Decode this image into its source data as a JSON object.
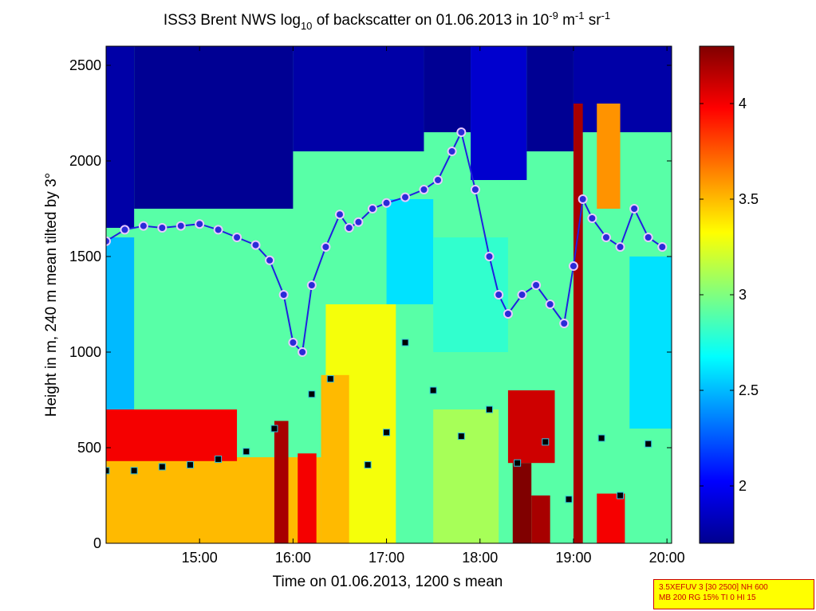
{
  "chart_data": {
    "type": "heatmap",
    "title_parts": {
      "a": "ISS3 Brent NWS log",
      "b": "10",
      "c": " of backscatter on 01.06.2013 in 10",
      "d": "-9",
      "e": " m",
      "f": "-1",
      "g": " sr",
      "h": "-1"
    },
    "xlabel": "Time on 01.06.2013, 1200 s mean",
    "ylabel": "Height in m, 240 m mean tilted by 3°",
    "xlim_hours": [
      14.0,
      20.05
    ],
    "ylim": [
      0,
      2600
    ],
    "x_ticks": [
      {
        "value": 15,
        "label": "15:00"
      },
      {
        "value": 16,
        "label": "16:00"
      },
      {
        "value": 17,
        "label": "17:00"
      },
      {
        "value": 18,
        "label": "18:00"
      },
      {
        "value": 19,
        "label": "19:00"
      },
      {
        "value": 20,
        "label": "20:00"
      }
    ],
    "y_ticks": [
      {
        "value": 0,
        "label": "0"
      },
      {
        "value": 500,
        "label": "500"
      },
      {
        "value": 1000,
        "label": "1000"
      },
      {
        "value": 1500,
        "label": "1500"
      },
      {
        "value": 2000,
        "label": "2000"
      },
      {
        "value": 2500,
        "label": "2500"
      }
    ],
    "colorbar": {
      "range": [
        1.7,
        4.3
      ],
      "ticks": [
        {
          "value": 2,
          "label": "2"
        },
        {
          "value": 2.5,
          "label": "2.5"
        },
        {
          "value": 3,
          "label": "3"
        },
        {
          "value": 3.5,
          "label": "3.5"
        },
        {
          "value": 4,
          "label": "4"
        }
      ]
    },
    "heatmap_zones": [
      {
        "x0": 14.0,
        "x1": 20.05,
        "y0": 0,
        "y1": 2600,
        "v": 2.9
      },
      {
        "x0": 14.0,
        "x1": 16.3,
        "y0": 0,
        "y1": 450,
        "v": 3.5
      },
      {
        "x0": 14.0,
        "x1": 15.4,
        "y0": 430,
        "y1": 700,
        "v": 4.0
      },
      {
        "x0": 14.0,
        "x1": 14.3,
        "y0": 1650,
        "y1": 2600,
        "v": 1.8
      },
      {
        "x0": 14.3,
        "x1": 16.0,
        "y0": 1750,
        "y1": 2600,
        "v": 1.75
      },
      {
        "x0": 16.0,
        "x1": 17.4,
        "y0": 2050,
        "y1": 2600,
        "v": 1.8
      },
      {
        "x0": 17.4,
        "x1": 17.9,
        "y0": 2150,
        "y1": 2600,
        "v": 1.75
      },
      {
        "x0": 17.9,
        "x1": 18.5,
        "y0": 1900,
        "y1": 2600,
        "v": 1.9
      },
      {
        "x0": 18.5,
        "x1": 19.0,
        "y0": 2050,
        "y1": 2600,
        "v": 1.75
      },
      {
        "x0": 19.0,
        "x1": 20.05,
        "y0": 2150,
        "y1": 2600,
        "v": 1.8
      },
      {
        "x0": 14.0,
        "x1": 14.3,
        "y0": 700,
        "y1": 1600,
        "v": 2.5
      },
      {
        "x0": 16.05,
        "x1": 16.25,
        "y0": 0,
        "y1": 470,
        "v": 4.0
      },
      {
        "x0": 15.8,
        "x1": 15.95,
        "y0": 0,
        "y1": 640,
        "v": 4.2
      },
      {
        "x0": 16.35,
        "x1": 17.1,
        "y0": 0,
        "y1": 1250,
        "v": 3.3
      },
      {
        "x0": 16.3,
        "x1": 16.6,
        "y0": 0,
        "y1": 880,
        "v": 3.5
      },
      {
        "x0": 17.0,
        "x1": 17.5,
        "y0": 1250,
        "y1": 1800,
        "v": 2.6
      },
      {
        "x0": 17.5,
        "x1": 18.3,
        "y0": 1000,
        "y1": 1600,
        "v": 2.8
      },
      {
        "x0": 18.35,
        "x1": 18.55,
        "y0": 0,
        "y1": 420,
        "v": 4.3
      },
      {
        "x0": 18.3,
        "x1": 18.8,
        "y0": 420,
        "y1": 800,
        "v": 4.1
      },
      {
        "x0": 18.55,
        "x1": 18.75,
        "y0": 0,
        "y1": 250,
        "v": 4.2
      },
      {
        "x0": 19.0,
        "x1": 19.1,
        "y0": 0,
        "y1": 2300,
        "v": 4.2
      },
      {
        "x0": 19.25,
        "x1": 19.5,
        "y0": 1750,
        "y1": 2300,
        "v": 3.6
      },
      {
        "x0": 19.25,
        "x1": 19.55,
        "y0": 0,
        "y1": 260,
        "v": 4.0
      },
      {
        "x0": 19.6,
        "x1": 20.05,
        "y0": 600,
        "y1": 1500,
        "v": 2.6
      },
      {
        "x0": 17.5,
        "x1": 18.2,
        "y0": 0,
        "y1": 700,
        "v": 3.1
      }
    ],
    "layer_tops": [
      {
        "series": "boundary layer (blue circles)",
        "points": [
          [
            14.0,
            1580
          ],
          [
            14.2,
            1640
          ],
          [
            14.4,
            1660
          ],
          [
            14.6,
            1650
          ],
          [
            14.8,
            1660
          ],
          [
            15.0,
            1670
          ],
          [
            15.2,
            1640
          ],
          [
            15.4,
            1600
          ],
          [
            15.6,
            1560
          ],
          [
            15.75,
            1480
          ],
          [
            15.9,
            1300
          ],
          [
            16.0,
            1050
          ],
          [
            16.1,
            1000
          ],
          [
            16.2,
            1350
          ],
          [
            16.35,
            1550
          ],
          [
            16.5,
            1720
          ],
          [
            16.6,
            1650
          ],
          [
            16.7,
            1680
          ],
          [
            16.85,
            1750
          ],
          [
            17.0,
            1780
          ],
          [
            17.2,
            1810
          ],
          [
            17.4,
            1850
          ],
          [
            17.55,
            1900
          ],
          [
            17.7,
            2050
          ],
          [
            17.8,
            2150
          ],
          [
            17.95,
            1850
          ],
          [
            18.1,
            1500
          ],
          [
            18.2,
            1300
          ],
          [
            18.3,
            1200
          ],
          [
            18.45,
            1300
          ],
          [
            18.6,
            1350
          ],
          [
            18.75,
            1250
          ],
          [
            18.9,
            1150
          ],
          [
            19.0,
            1450
          ],
          [
            19.1,
            1800
          ],
          [
            19.2,
            1700
          ],
          [
            19.35,
            1600
          ],
          [
            19.5,
            1550
          ],
          [
            19.65,
            1750
          ],
          [
            19.8,
            1600
          ],
          [
            19.95,
            1550
          ]
        ]
      },
      {
        "series": "cloud base (black squares)",
        "points": [
          [
            14.0,
            380
          ],
          [
            14.3,
            380
          ],
          [
            14.6,
            400
          ],
          [
            14.9,
            410
          ],
          [
            15.2,
            440
          ],
          [
            15.5,
            480
          ],
          [
            15.8,
            600
          ],
          [
            16.2,
            780
          ],
          [
            16.4,
            860
          ],
          [
            16.8,
            410
          ],
          [
            17.0,
            580
          ],
          [
            17.2,
            1050
          ],
          [
            17.5,
            800
          ],
          [
            17.8,
            560
          ],
          [
            18.1,
            700
          ],
          [
            18.4,
            420
          ],
          [
            18.7,
            530
          ],
          [
            18.95,
            230
          ],
          [
            19.3,
            550
          ],
          [
            19.5,
            250
          ],
          [
            19.8,
            520
          ]
        ]
      }
    ]
  },
  "info_box": {
    "line1": "3.5XEFUV 3 [30 2500] NH 600",
    "line2": "MB 200 RG 15% TI 0 HI 15"
  }
}
